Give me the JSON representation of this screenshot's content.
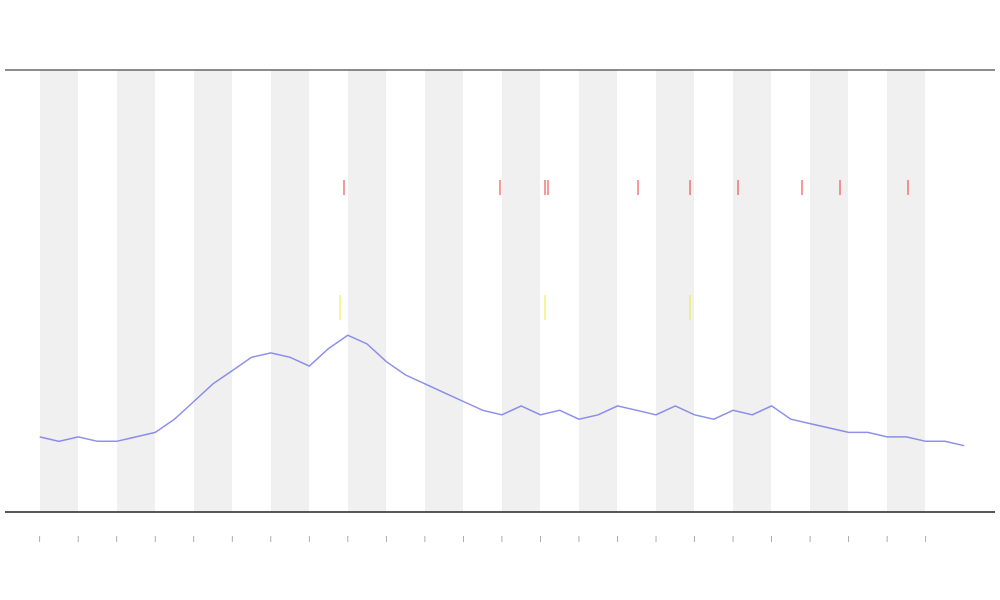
{
  "chart_data": {
    "type": "line",
    "series": [
      {
        "color": "#6f74e6",
        "x": [
          0,
          0.5,
          1,
          1.5,
          2,
          2.5,
          3,
          3.5,
          4,
          4.5,
          5,
          5.5,
          6,
          6.5,
          7,
          7.5,
          8,
          8.5,
          9,
          9.5,
          10,
          10.5,
          11,
          11.5,
          12,
          12.5,
          13,
          13.5,
          14,
          14.5,
          15,
          15.5,
          16,
          16.5,
          17,
          17.5,
          18,
          18.5,
          19,
          19.5,
          20,
          20.5,
          21,
          21.5,
          22,
          22.5,
          23,
          23.5,
          24
        ],
        "values": [
          17,
          16,
          17,
          16,
          16,
          17,
          18,
          21,
          25,
          29,
          32,
          35,
          36,
          35,
          33,
          37,
          40,
          38,
          34,
          31,
          29,
          27,
          25,
          23,
          22,
          24,
          22,
          23,
          21,
          22,
          24,
          23,
          22,
          24,
          22,
          21,
          23,
          22,
          24,
          21,
          20,
          19,
          18,
          18,
          17,
          17,
          16,
          16,
          15
        ]
      }
    ],
    "xlim": [
      -0.9,
      24.8
    ],
    "xticks": [
      0,
      1,
      2,
      3,
      4,
      5,
      6,
      7,
      8,
      9,
      10,
      11,
      12,
      13,
      14,
      15,
      16,
      17,
      18,
      19,
      20,
      21,
      22,
      23
    ],
    "ylim": [
      0,
      100
    ]
  }
}
